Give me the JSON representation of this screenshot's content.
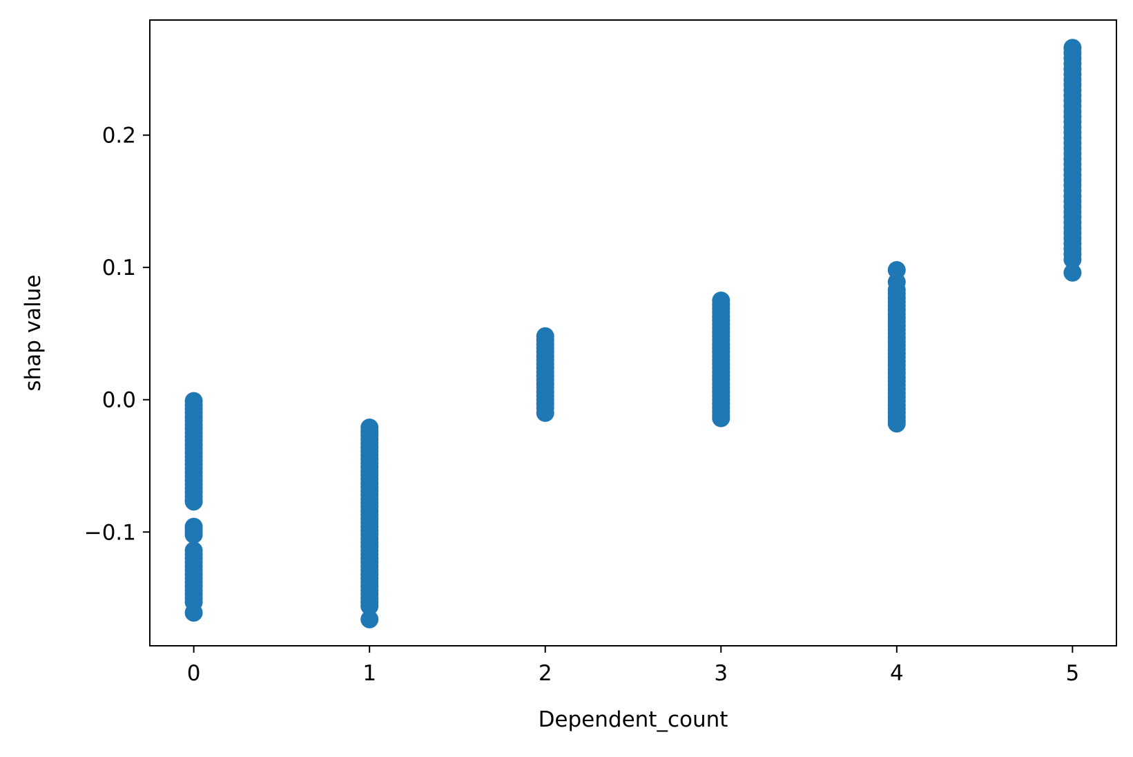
{
  "chart_data": {
    "type": "scatter",
    "title": "",
    "xlabel": "Dependent_count",
    "ylabel": "shap value",
    "xlim": [
      -0.25,
      5.25
    ],
    "ylim": [
      -0.186,
      0.287
    ],
    "x_ticks": [
      0,
      1,
      2,
      3,
      4,
      5
    ],
    "x_tick_labels": [
      "0",
      "1",
      "2",
      "3",
      "4",
      "5"
    ],
    "y_ticks": [
      -0.1,
      0.0,
      0.1,
      0.2
    ],
    "y_tick_labels": [
      "−0.1",
      "0.0",
      "0.1",
      "0.2"
    ],
    "grid": false,
    "marker_color": "#1f77b4",
    "series": [
      {
        "points": [
          [
            0,
            -0.001
          ],
          [
            0,
            -0.004
          ],
          [
            0,
            -0.007
          ],
          [
            0,
            -0.01
          ],
          [
            0,
            -0.013
          ],
          [
            0,
            -0.016
          ],
          [
            0,
            -0.019
          ],
          [
            0,
            -0.022
          ],
          [
            0,
            -0.025
          ],
          [
            0,
            -0.028
          ],
          [
            0,
            -0.031
          ],
          [
            0,
            -0.034
          ],
          [
            0,
            -0.037
          ],
          [
            0,
            -0.04
          ],
          [
            0,
            -0.043
          ],
          [
            0,
            -0.046
          ],
          [
            0,
            -0.049
          ],
          [
            0,
            -0.052
          ],
          [
            0,
            -0.055
          ],
          [
            0,
            -0.058
          ],
          [
            0,
            -0.061
          ],
          [
            0,
            -0.064
          ],
          [
            0,
            -0.067
          ],
          [
            0,
            -0.07
          ],
          [
            0,
            -0.073
          ],
          [
            0,
            -0.076
          ],
          [
            0,
            -0.077
          ],
          [
            0,
            -0.096
          ],
          [
            0,
            -0.098
          ],
          [
            0,
            -0.1
          ],
          [
            0,
            -0.102
          ],
          [
            0,
            -0.114
          ],
          [
            0,
            -0.117
          ],
          [
            0,
            -0.12
          ],
          [
            0,
            -0.123
          ],
          [
            0,
            -0.126
          ],
          [
            0,
            -0.129
          ],
          [
            0,
            -0.132
          ],
          [
            0,
            -0.135
          ],
          [
            0,
            -0.138
          ],
          [
            0,
            -0.141
          ],
          [
            0,
            -0.144
          ],
          [
            0,
            -0.147
          ],
          [
            0,
            -0.15
          ],
          [
            0,
            -0.153
          ],
          [
            0,
            -0.161
          ],
          [
            1,
            -0.021
          ],
          [
            1,
            -0.024
          ],
          [
            1,
            -0.027
          ],
          [
            1,
            -0.03
          ],
          [
            1,
            -0.033
          ],
          [
            1,
            -0.036
          ],
          [
            1,
            -0.039
          ],
          [
            1,
            -0.042
          ],
          [
            1,
            -0.045
          ],
          [
            1,
            -0.048
          ],
          [
            1,
            -0.051
          ],
          [
            1,
            -0.054
          ],
          [
            1,
            -0.057
          ],
          [
            1,
            -0.06
          ],
          [
            1,
            -0.063
          ],
          [
            1,
            -0.066
          ],
          [
            1,
            -0.069
          ],
          [
            1,
            -0.072
          ],
          [
            1,
            -0.075
          ],
          [
            1,
            -0.078
          ],
          [
            1,
            -0.081
          ],
          [
            1,
            -0.084
          ],
          [
            1,
            -0.087
          ],
          [
            1,
            -0.09
          ],
          [
            1,
            -0.093
          ],
          [
            1,
            -0.096
          ],
          [
            1,
            -0.099
          ],
          [
            1,
            -0.102
          ],
          [
            1,
            -0.105
          ],
          [
            1,
            -0.108
          ],
          [
            1,
            -0.111
          ],
          [
            1,
            -0.114
          ],
          [
            1,
            -0.117
          ],
          [
            1,
            -0.12
          ],
          [
            1,
            -0.123
          ],
          [
            1,
            -0.126
          ],
          [
            1,
            -0.129
          ],
          [
            1,
            -0.132
          ],
          [
            1,
            -0.135
          ],
          [
            1,
            -0.138
          ],
          [
            1,
            -0.141
          ],
          [
            1,
            -0.144
          ],
          [
            1,
            -0.147
          ],
          [
            1,
            -0.15
          ],
          [
            1,
            -0.153
          ],
          [
            1,
            -0.156
          ],
          [
            1,
            -0.166
          ],
          [
            2,
            0.048
          ],
          [
            2,
            0.045
          ],
          [
            2,
            0.042
          ],
          [
            2,
            0.039
          ],
          [
            2,
            0.036
          ],
          [
            2,
            0.033
          ],
          [
            2,
            0.03
          ],
          [
            2,
            0.027
          ],
          [
            2,
            0.024
          ],
          [
            2,
            0.021
          ],
          [
            2,
            0.018
          ],
          [
            2,
            0.015
          ],
          [
            2,
            0.012
          ],
          [
            2,
            0.009
          ],
          [
            2,
            0.006
          ],
          [
            2,
            0.003
          ],
          [
            2,
            0.0
          ],
          [
            2,
            -0.003
          ],
          [
            2,
            -0.006
          ],
          [
            2,
            -0.01
          ],
          [
            3,
            0.075
          ],
          [
            3,
            0.072
          ],
          [
            3,
            0.069
          ],
          [
            3,
            0.066
          ],
          [
            3,
            0.063
          ],
          [
            3,
            0.06
          ],
          [
            3,
            0.057
          ],
          [
            3,
            0.054
          ],
          [
            3,
            0.051
          ],
          [
            3,
            0.048
          ],
          [
            3,
            0.045
          ],
          [
            3,
            0.042
          ],
          [
            3,
            0.039
          ],
          [
            3,
            0.036
          ],
          [
            3,
            0.033
          ],
          [
            3,
            0.03
          ],
          [
            3,
            0.027
          ],
          [
            3,
            0.024
          ],
          [
            3,
            0.021
          ],
          [
            3,
            0.018
          ],
          [
            3,
            0.015
          ],
          [
            3,
            0.012
          ],
          [
            3,
            0.009
          ],
          [
            3,
            0.006
          ],
          [
            3,
            0.003
          ],
          [
            3,
            0.0
          ],
          [
            3,
            -0.003
          ],
          [
            3,
            -0.006
          ],
          [
            3,
            -0.009
          ],
          [
            3,
            -0.012
          ],
          [
            3,
            -0.014
          ],
          [
            4,
            0.098
          ],
          [
            4,
            0.089
          ],
          [
            4,
            0.083
          ],
          [
            4,
            0.08
          ],
          [
            4,
            0.077
          ],
          [
            4,
            0.074
          ],
          [
            4,
            0.071
          ],
          [
            4,
            0.068
          ],
          [
            4,
            0.065
          ],
          [
            4,
            0.062
          ],
          [
            4,
            0.059
          ],
          [
            4,
            0.056
          ],
          [
            4,
            0.053
          ],
          [
            4,
            0.05
          ],
          [
            4,
            0.047
          ],
          [
            4,
            0.044
          ],
          [
            4,
            0.041
          ],
          [
            4,
            0.038
          ],
          [
            4,
            0.035
          ],
          [
            4,
            0.032
          ],
          [
            4,
            0.029
          ],
          [
            4,
            0.026
          ],
          [
            4,
            0.023
          ],
          [
            4,
            0.02
          ],
          [
            4,
            0.017
          ],
          [
            4,
            0.014
          ],
          [
            4,
            0.011
          ],
          [
            4,
            0.008
          ],
          [
            4,
            0.005
          ],
          [
            4,
            0.002
          ],
          [
            4,
            -0.001
          ],
          [
            4,
            -0.004
          ],
          [
            4,
            -0.007
          ],
          [
            4,
            -0.01
          ],
          [
            4,
            -0.013
          ],
          [
            4,
            -0.016
          ],
          [
            4,
            -0.018
          ],
          [
            5,
            0.266
          ],
          [
            5,
            0.262
          ],
          [
            5,
            0.258
          ],
          [
            5,
            0.254
          ],
          [
            5,
            0.25
          ],
          [
            5,
            0.246
          ],
          [
            5,
            0.242
          ],
          [
            5,
            0.238
          ],
          [
            5,
            0.234
          ],
          [
            5,
            0.23
          ],
          [
            5,
            0.226
          ],
          [
            5,
            0.222
          ],
          [
            5,
            0.218
          ],
          [
            5,
            0.214
          ],
          [
            5,
            0.21
          ],
          [
            5,
            0.206
          ],
          [
            5,
            0.202
          ],
          [
            5,
            0.198
          ],
          [
            5,
            0.194
          ],
          [
            5,
            0.19
          ],
          [
            5,
            0.186
          ],
          [
            5,
            0.182
          ],
          [
            5,
            0.178
          ],
          [
            5,
            0.174
          ],
          [
            5,
            0.17
          ],
          [
            5,
            0.166
          ],
          [
            5,
            0.162
          ],
          [
            5,
            0.158
          ],
          [
            5,
            0.154
          ],
          [
            5,
            0.15
          ],
          [
            5,
            0.146
          ],
          [
            5,
            0.142
          ],
          [
            5,
            0.138
          ],
          [
            5,
            0.134
          ],
          [
            5,
            0.13
          ],
          [
            5,
            0.126
          ],
          [
            5,
            0.122
          ],
          [
            5,
            0.118
          ],
          [
            5,
            0.114
          ],
          [
            5,
            0.11
          ],
          [
            5,
            0.106
          ],
          [
            5,
            0.096
          ]
        ]
      }
    ]
  }
}
